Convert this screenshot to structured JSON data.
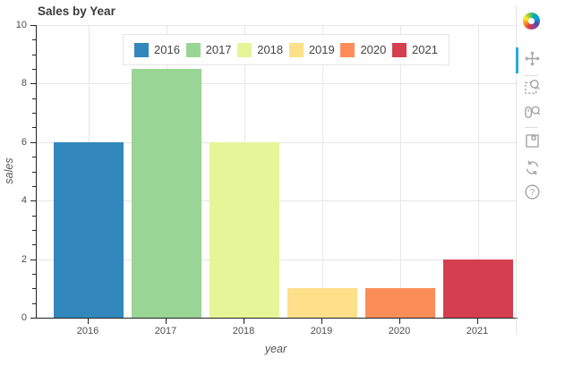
{
  "chart_data": {
    "type": "bar",
    "title": "Sales by Year",
    "categories": [
      "2016",
      "2017",
      "2018",
      "2019",
      "2020",
      "2021"
    ],
    "values": [
      6,
      8.5,
      6,
      1,
      1,
      2
    ],
    "bar_colors": [
      "#3288bd",
      "#99d594",
      "#e6f598",
      "#fee08b",
      "#fc8d59",
      "#d53e4f"
    ],
    "xlabel": "year",
    "ylabel": "sales",
    "ylim": [
      0,
      10
    ],
    "y_major_ticks": [
      0,
      2,
      4,
      6,
      8,
      10
    ],
    "y_minor_step": 0.5,
    "grid": true,
    "legend": {
      "position": "top-center",
      "entries": [
        {
          "label": "2016",
          "color": "#3288bd"
        },
        {
          "label": "2017",
          "color": "#99d594"
        },
        {
          "label": "2018",
          "color": "#e6f598"
        },
        {
          "label": "2019",
          "color": "#fee08b"
        },
        {
          "label": "2020",
          "color": "#fc8d59"
        },
        {
          "label": "2021",
          "color": "#d53e4f"
        }
      ]
    }
  },
  "toolbar": {
    "logo": "bokeh-logo",
    "active_tool": "pan",
    "active_indicator_color": "#26aae1",
    "tools": [
      {
        "name": "pan",
        "active": true
      },
      {
        "name": "box-zoom",
        "active": false
      },
      {
        "name": "wheel-zoom",
        "active": false
      },
      {
        "name": "save",
        "active": false
      },
      {
        "name": "reset",
        "active": false
      },
      {
        "name": "help",
        "active": false
      }
    ]
  },
  "colors": {
    "grid": "#e6e6e6",
    "axis": "#222222",
    "tick_label": "#4d4d4d",
    "title": "#3b3b3b",
    "toolbar_icon": "#a6a6a6"
  }
}
